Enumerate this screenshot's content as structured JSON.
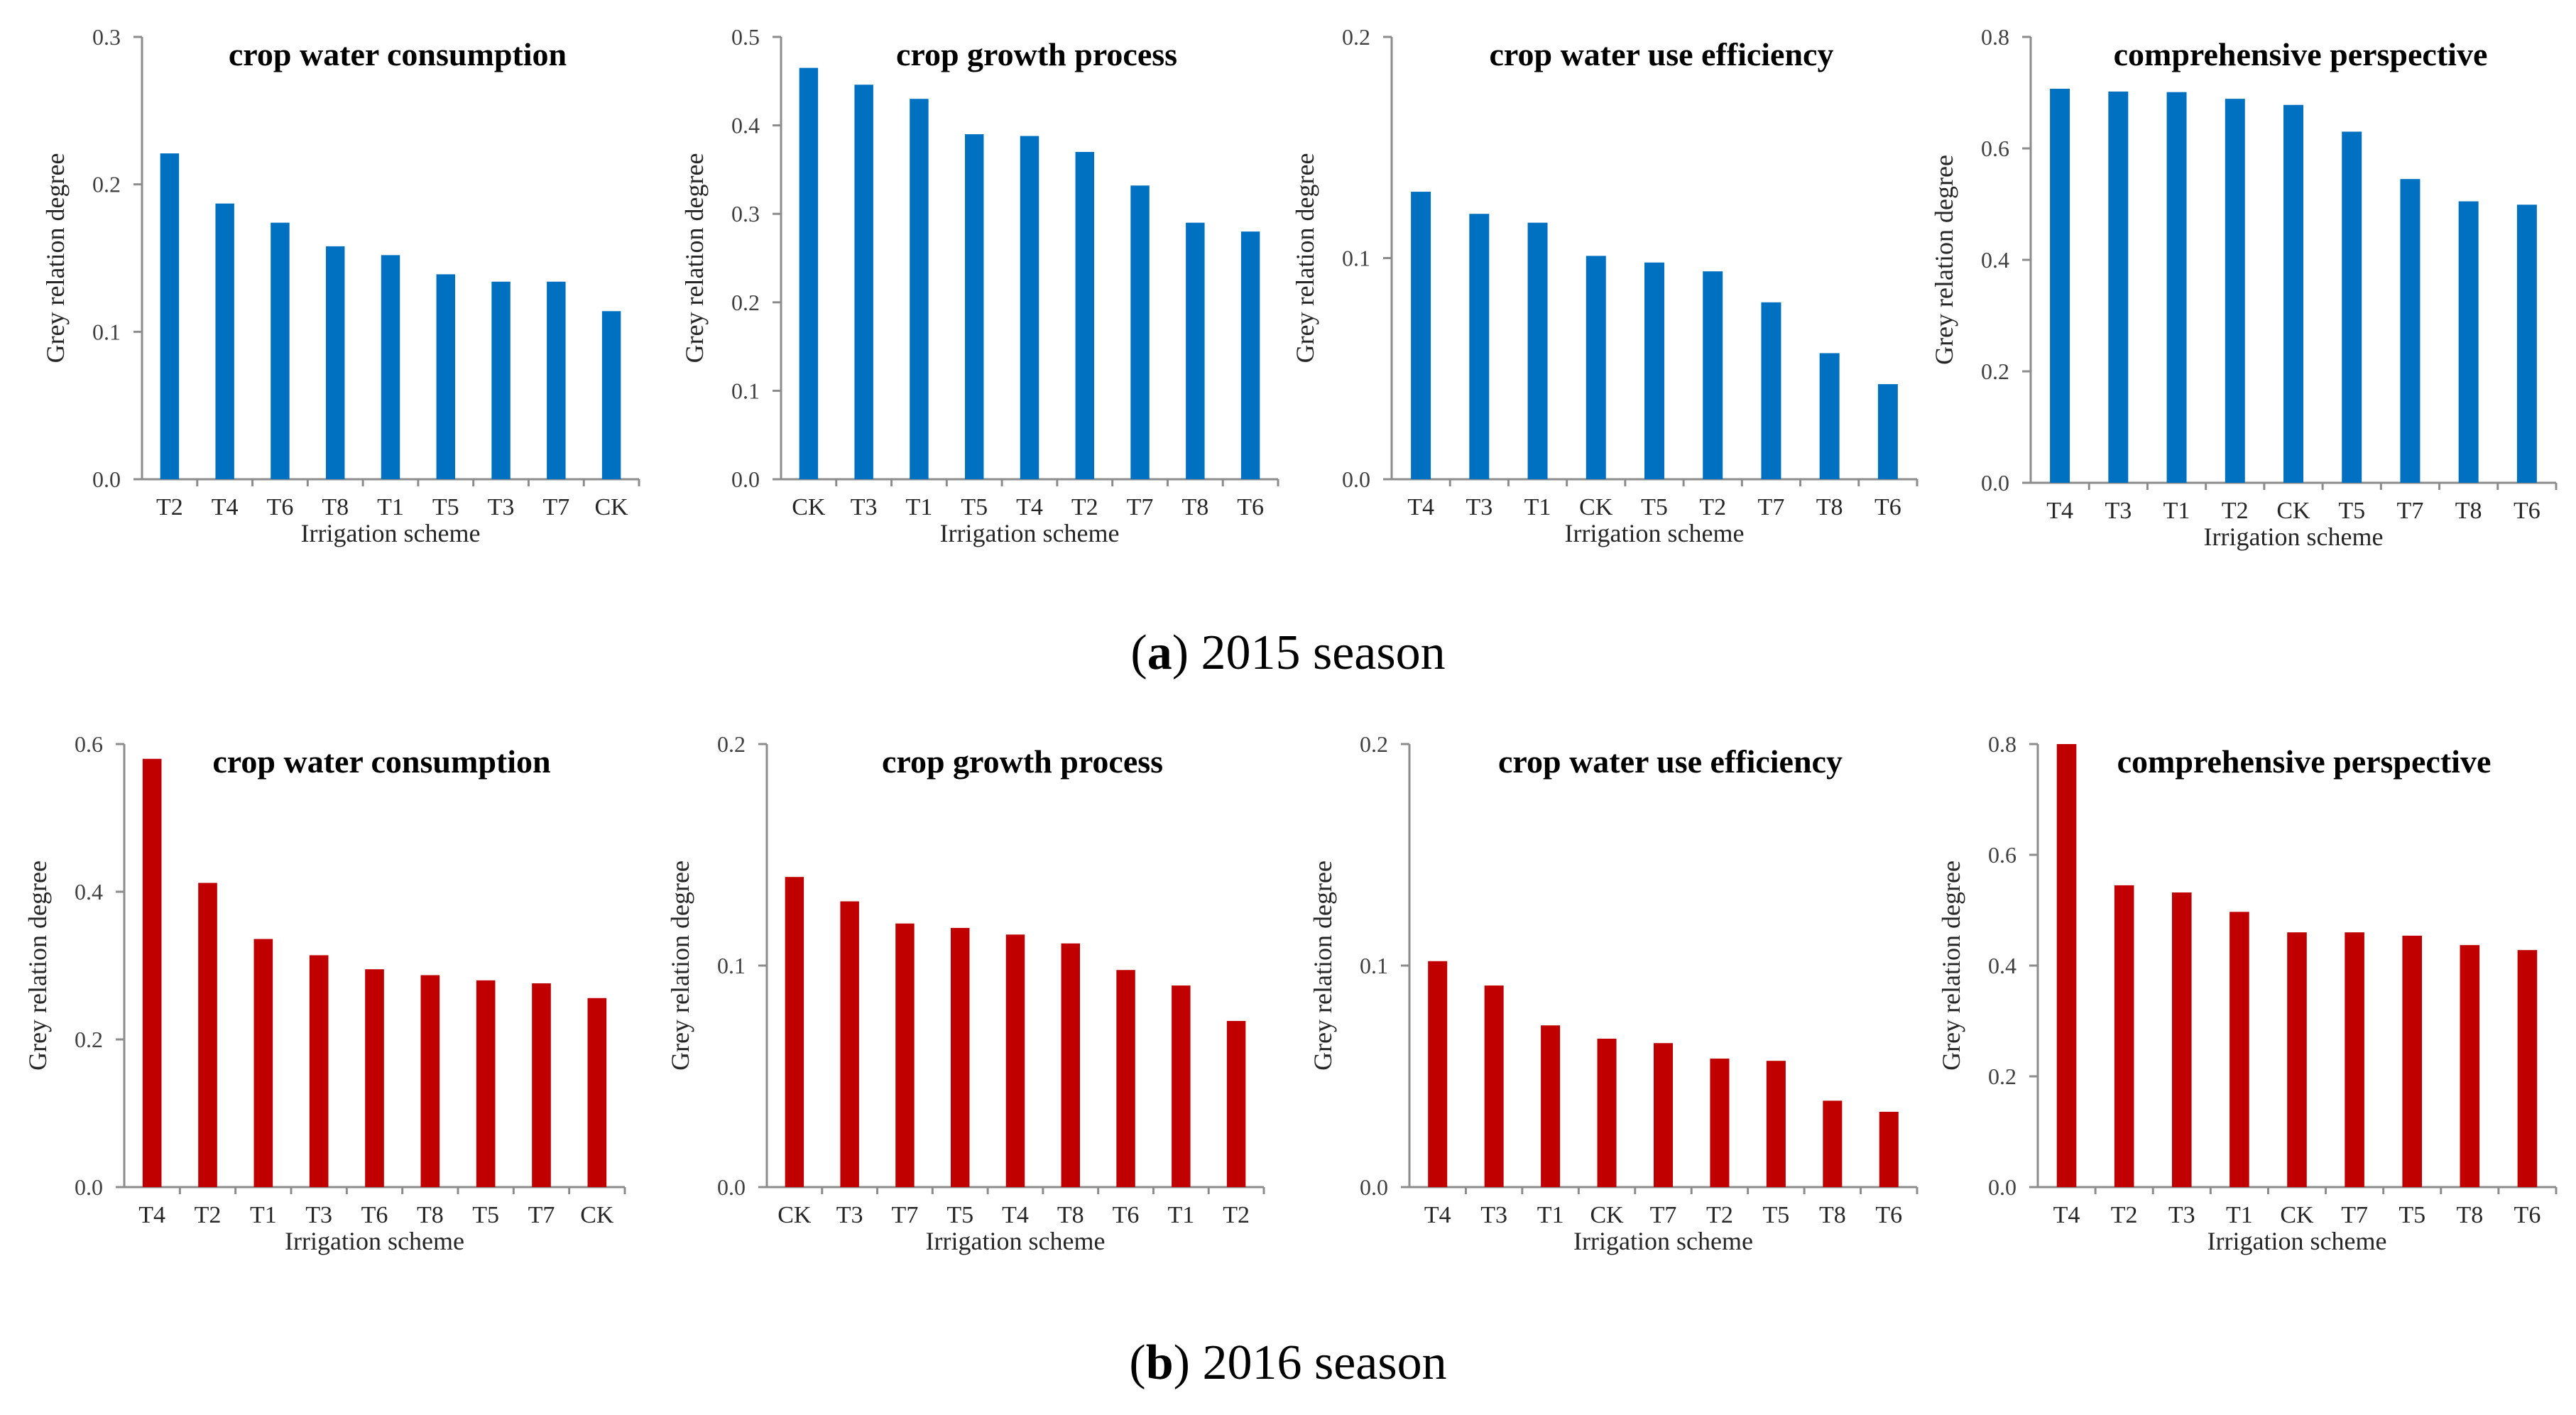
{
  "captions": {
    "a": {
      "letter": "a",
      "text": ") 2015 season"
    },
    "b": {
      "letter": "b",
      "text": ") 2016 season"
    }
  },
  "chart_data": [
    {
      "type": "bar",
      "season": "2015",
      "color": "#0070C0",
      "title": "crop water consumption",
      "xlabel": "Irrigation scheme",
      "ylabel": "Grey relation degree",
      "ylim": [
        0,
        0.3
      ],
      "yticks": [
        "0.0",
        "0.1",
        "0.2",
        "0.3"
      ],
      "categories": [
        "T2",
        "T4",
        "T6",
        "T8",
        "T1",
        "T5",
        "T3",
        "T7",
        "CK"
      ],
      "values": [
        0.221,
        0.187,
        0.174,
        0.158,
        0.152,
        0.139,
        0.134,
        0.134,
        0.114
      ]
    },
    {
      "type": "bar",
      "season": "2015",
      "color": "#0070C0",
      "title": "crop growth process",
      "xlabel": "Irrigation scheme",
      "ylabel": "Grey relation degree",
      "ylim": [
        0,
        0.5
      ],
      "yticks": [
        "0.0",
        "0.1",
        "0.2",
        "0.3",
        "0.4",
        "0.5"
      ],
      "categories": [
        "CK",
        "T3",
        "T1",
        "T5",
        "T4",
        "T2",
        "T7",
        "T8",
        "T6"
      ],
      "values": [
        0.465,
        0.446,
        0.43,
        0.39,
        0.388,
        0.37,
        0.332,
        0.29,
        0.28
      ]
    },
    {
      "type": "bar",
      "season": "2015",
      "color": "#0070C0",
      "title": "crop water use efficiency",
      "xlabel": "Irrigation scheme",
      "ylabel": "Grey relation degree",
      "ylim": [
        0,
        0.2
      ],
      "yticks": [
        "0.0",
        "0.1",
        "0.2"
      ],
      "categories": [
        "T4",
        "T3",
        "T1",
        "CK",
        "T5",
        "T2",
        "T7",
        "T8",
        "T6"
      ],
      "values": [
        0.13,
        0.12,
        0.116,
        0.101,
        0.098,
        0.094,
        0.08,
        0.057,
        0.043
      ]
    },
    {
      "type": "bar",
      "season": "2015",
      "color": "#0070C0",
      "title": "comprehensive perspective",
      "xlabel": "Irrigation scheme",
      "ylabel": "Grey relation degree",
      "ylim": [
        0,
        0.8
      ],
      "yticks": [
        "0.0",
        "0.2",
        "0.4",
        "0.6",
        "0.8"
      ],
      "categories": [
        "T4",
        "T3",
        "T1",
        "T2",
        "CK",
        "T5",
        "T7",
        "T8",
        "T6"
      ],
      "values": [
        0.707,
        0.702,
        0.701,
        0.689,
        0.678,
        0.63,
        0.545,
        0.505,
        0.499
      ]
    },
    {
      "type": "bar",
      "season": "2016",
      "color": "#C00000",
      "title": "crop water consumption",
      "xlabel": "Irrigation scheme",
      "ylabel": "Grey relation degree",
      "ylim": [
        0,
        0.6
      ],
      "yticks": [
        "0.0",
        "0.2",
        "0.4",
        "0.6"
      ],
      "categories": [
        "T4",
        "T2",
        "T1",
        "T3",
        "T6",
        "T8",
        "T5",
        "T7",
        "CK"
      ],
      "values": [
        0.58,
        0.412,
        0.336,
        0.314,
        0.295,
        0.287,
        0.28,
        0.276,
        0.256
      ]
    },
    {
      "type": "bar",
      "season": "2016",
      "color": "#C00000",
      "title": "crop growth process",
      "xlabel": "Irrigation scheme",
      "ylabel": "Grey relation degree",
      "ylim": [
        0,
        0.2
      ],
      "yticks": [
        "0.0",
        "0.1",
        "0.2"
      ],
      "categories": [
        "CK",
        "T3",
        "T7",
        "T5",
        "T4",
        "T8",
        "T6",
        "T1",
        "T2"
      ],
      "values": [
        0.14,
        0.129,
        0.119,
        0.117,
        0.114,
        0.11,
        0.098,
        0.091,
        0.075
      ]
    },
    {
      "type": "bar",
      "season": "2016",
      "color": "#C00000",
      "title": "crop water use efficiency",
      "xlabel": "Irrigation scheme",
      "ylabel": "Grey relation degree",
      "ylim": [
        0,
        0.2
      ],
      "yticks": [
        "0.0",
        "0.1",
        "0.2"
      ],
      "categories": [
        "T4",
        "T3",
        "T1",
        "CK",
        "T7",
        "T2",
        "T5",
        "T8",
        "T6"
      ],
      "values": [
        0.102,
        0.091,
        0.073,
        0.067,
        0.065,
        0.058,
        0.057,
        0.039,
        0.034
      ]
    },
    {
      "type": "bar",
      "season": "2016",
      "color": "#C00000",
      "title": "comprehensive perspective",
      "xlabel": "Irrigation scheme",
      "ylabel": "Grey relation degree",
      "ylim": [
        0,
        0.8
      ],
      "yticks": [
        "0.0",
        "0.2",
        "0.4",
        "0.6",
        "0.8"
      ],
      "categories": [
        "T4",
        "T2",
        "T3",
        "T1",
        "CK",
        "T7",
        "T5",
        "T8",
        "T6"
      ],
      "values": [
        0.8,
        0.545,
        0.532,
        0.497,
        0.46,
        0.46,
        0.454,
        0.437,
        0.428
      ]
    }
  ]
}
